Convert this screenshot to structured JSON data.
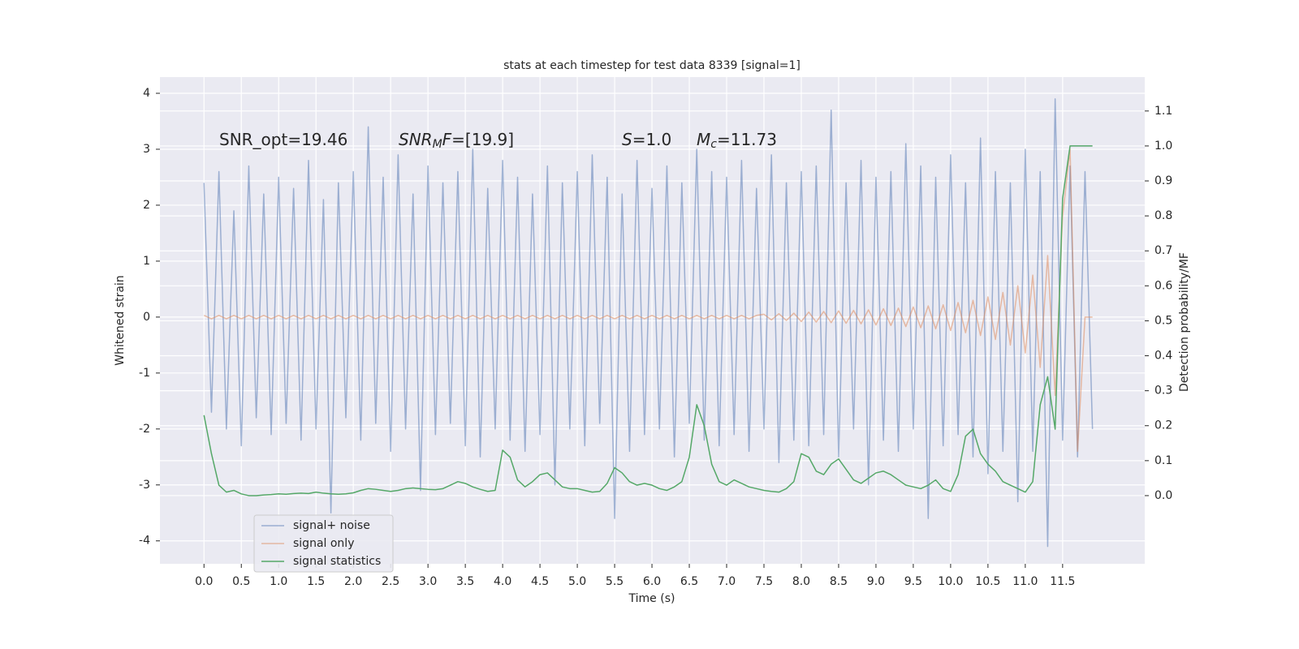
{
  "chart_data": {
    "type": "line",
    "title": "stats at each timestep for test data 8339 [signal=1]",
    "x_label": "Time (s)",
    "y_label": "Whitened strain",
    "y2_label": "Detection probability/MF",
    "annotations": [
      [
        "SNR_opt=19.46"
      ],
      [
        "SNR",
        "M",
        "F",
        "=[19.9]"
      ],
      [
        "S",
        "=1.0"
      ],
      [
        "M",
        "c",
        "=11.73"
      ]
    ],
    "x": [
      0.0,
      0.1,
      0.2,
      0.3,
      0.4,
      0.5,
      0.6,
      0.7,
      0.8,
      0.9,
      1.0,
      1.1,
      1.2,
      1.3,
      1.4,
      1.5,
      1.6,
      1.7,
      1.8,
      1.9,
      2.0,
      2.1,
      2.2,
      2.3,
      2.4,
      2.5,
      2.6,
      2.7,
      2.8,
      2.9,
      3.0,
      3.1,
      3.2,
      3.3,
      3.4,
      3.5,
      3.6,
      3.7,
      3.8,
      3.9,
      4.0,
      4.1,
      4.2,
      4.3,
      4.4,
      4.5,
      4.6,
      4.7,
      4.8,
      4.9,
      5.0,
      5.1,
      5.2,
      5.3,
      5.4,
      5.5,
      5.6,
      5.7,
      5.8,
      5.9,
      6.0,
      6.1,
      6.2,
      6.3,
      6.4,
      6.5,
      6.6,
      6.7,
      6.8,
      6.9,
      7.0,
      7.1,
      7.2,
      7.3,
      7.4,
      7.5,
      7.6,
      7.7,
      7.8,
      7.9,
      8.0,
      8.1,
      8.2,
      8.3,
      8.4,
      8.5,
      8.6,
      8.7,
      8.8,
      8.9,
      9.0,
      9.1,
      9.2,
      9.3,
      9.4,
      9.5,
      9.6,
      9.7,
      9.8,
      9.9,
      10.0,
      10.1,
      10.2,
      10.3,
      10.4,
      10.5,
      10.6,
      10.7,
      10.8,
      10.9,
      11.0,
      11.1,
      11.2,
      11.3,
      11.4,
      11.5,
      11.6,
      11.7,
      11.8,
      11.9
    ],
    "series": [
      {
        "name": "signal+ noise",
        "color": "#4c72b0",
        "opacity": 0.5,
        "axis": "y",
        "values": [
          2.4,
          -1.7,
          2.6,
          -2.0,
          1.9,
          -2.3,
          2.7,
          -1.8,
          2.2,
          -2.1,
          2.5,
          -1.9,
          2.3,
          -2.2,
          2.8,
          -2.0,
          2.1,
          -3.5,
          2.4,
          -1.8,
          2.6,
          -2.2,
          3.4,
          -1.9,
          2.5,
          -2.4,
          2.9,
          -2.0,
          2.2,
          -3.1,
          2.7,
          -2.1,
          2.4,
          -1.9,
          2.6,
          -2.3,
          3.0,
          -2.5,
          2.3,
          -2.0,
          2.8,
          -2.2,
          2.5,
          -2.4,
          2.2,
          -2.1,
          2.7,
          -3.0,
          2.4,
          -2.0,
          2.6,
          -2.3,
          2.9,
          -1.9,
          2.5,
          -3.6,
          2.2,
          -2.4,
          2.8,
          -2.1,
          2.3,
          -2.0,
          2.7,
          -2.5,
          2.4,
          -1.9,
          3.0,
          -2.2,
          2.6,
          -2.3,
          2.5,
          -2.1,
          2.8,
          -2.4,
          2.3,
          -2.0,
          2.9,
          -2.6,
          2.4,
          -2.2,
          2.6,
          -2.3,
          2.7,
          -2.1,
          3.7,
          -2.5,
          2.4,
          -2.0,
          2.8,
          -3.0,
          2.5,
          -2.2,
          2.6,
          -2.4,
          3.1,
          -2.0,
          2.7,
          -3.6,
          2.5,
          -2.3,
          2.9,
          -2.1,
          2.4,
          -2.5,
          3.2,
          -2.8,
          2.6,
          -2.4,
          2.4,
          -3.3,
          3.0,
          -2.4,
          2.6,
          -4.1,
          3.9,
          -2.2,
          2.7,
          -2.5,
          2.6,
          -2.0
        ]
      },
      {
        "name": "signal only",
        "color": "#dd8452",
        "opacity": 0.5,
        "axis": "y",
        "values": [
          0.03,
          -0.03,
          0.03,
          -0.03,
          0.03,
          -0.03,
          0.03,
          -0.03,
          0.03,
          -0.03,
          0.03,
          -0.03,
          0.03,
          -0.03,
          0.03,
          -0.03,
          0.03,
          -0.03,
          0.03,
          -0.03,
          0.03,
          -0.03,
          0.03,
          -0.03,
          0.03,
          -0.03,
          0.03,
          -0.03,
          0.03,
          -0.03,
          0.03,
          -0.03,
          0.03,
          -0.03,
          0.03,
          -0.03,
          0.03,
          -0.03,
          0.03,
          -0.03,
          0.03,
          -0.03,
          0.03,
          -0.03,
          0.03,
          -0.03,
          0.03,
          -0.03,
          0.03,
          -0.03,
          0.03,
          -0.03,
          0.03,
          -0.03,
          0.03,
          -0.03,
          0.03,
          -0.03,
          0.03,
          -0.03,
          0.03,
          -0.03,
          0.03,
          -0.03,
          0.03,
          -0.03,
          0.03,
          -0.03,
          0.03,
          -0.03,
          0.03,
          -0.03,
          0.03,
          -0.03,
          0.03,
          0.05,
          -0.05,
          0.06,
          -0.06,
          0.07,
          -0.08,
          0.09,
          -0.09,
          0.1,
          -0.1,
          0.11,
          -0.11,
          0.12,
          -0.12,
          0.13,
          -0.14,
          0.15,
          -0.15,
          0.16,
          -0.17,
          0.18,
          -0.19,
          0.2,
          -0.21,
          0.22,
          -0.24,
          0.26,
          -0.28,
          0.3,
          -0.33,
          0.36,
          -0.4,
          0.44,
          -0.5,
          0.56,
          -0.64,
          0.75,
          -0.9,
          1.1,
          -1.4,
          1.8,
          3.0,
          -2.4,
          0.0,
          0.0
        ]
      },
      {
        "name": "signal statistics",
        "color": "#55a868",
        "opacity": 1,
        "axis": "y2",
        "values": [
          0.23,
          0.12,
          0.03,
          0.01,
          0.015,
          0.005,
          0.0,
          0.0,
          0.002,
          0.003,
          0.005,
          0.004,
          0.006,
          0.007,
          0.006,
          0.01,
          0.007,
          0.005,
          0.004,
          0.005,
          0.008,
          0.015,
          0.02,
          0.018,
          0.015,
          0.012,
          0.015,
          0.02,
          0.022,
          0.02,
          0.018,
          0.017,
          0.02,
          0.03,
          0.04,
          0.035,
          0.025,
          0.018,
          0.012,
          0.015,
          0.13,
          0.11,
          0.045,
          0.025,
          0.04,
          0.06,
          0.065,
          0.045,
          0.025,
          0.02,
          0.02,
          0.015,
          0.01,
          0.012,
          0.035,
          0.08,
          0.065,
          0.04,
          0.03,
          0.035,
          0.03,
          0.02,
          0.015,
          0.025,
          0.04,
          0.11,
          0.26,
          0.2,
          0.09,
          0.04,
          0.03,
          0.045,
          0.035,
          0.025,
          0.02,
          0.015,
          0.012,
          0.01,
          0.02,
          0.04,
          0.12,
          0.11,
          0.07,
          0.06,
          0.09,
          0.105,
          0.075,
          0.045,
          0.035,
          0.05,
          0.065,
          0.07,
          0.06,
          0.045,
          0.03,
          0.025,
          0.02,
          0.03,
          0.045,
          0.02,
          0.012,
          0.06,
          0.17,
          0.19,
          0.12,
          0.09,
          0.07,
          0.04,
          0.03,
          0.02,
          0.01,
          0.04,
          0.26,
          0.34,
          0.19,
          0.85,
          1.0,
          1.0,
          1.0,
          1.0
        ]
      }
    ],
    "xlim": [
      -0.59,
      12.6
    ],
    "ylim": [
      -4.41,
      4.29
    ],
    "y2lim": [
      -0.195,
      1.197
    ],
    "xticks": [
      {
        "value": 0,
        "label": "0.0"
      },
      0.5,
      {
        "value": 1,
        "label": "1.0"
      },
      1.5,
      {
        "value": 2,
        "label": "2.0"
      },
      2.5,
      {
        "value": 3,
        "label": "3.0"
      },
      3.5,
      {
        "value": 4,
        "label": "4.0"
      },
      4.5,
      {
        "value": 5,
        "label": "5.0"
      },
      5.5,
      {
        "value": 6,
        "label": "6.0"
      },
      6.5,
      {
        "value": 7,
        "label": "7.0"
      },
      7.5,
      {
        "value": 8,
        "label": "8.0"
      },
      8.5,
      {
        "value": 9,
        "label": "9.0"
      },
      9.5,
      {
        "value": 10,
        "label": "10.0"
      },
      10.5,
      {
        "value": 11,
        "label": "11.0"
      },
      11.5
    ],
    "yticks": [
      -4,
      -3,
      -2,
      -1,
      0,
      1,
      2,
      3,
      4
    ],
    "y2ticks": [
      {
        "value": 0,
        "label": "0.0"
      },
      0.1,
      0.2,
      0.3,
      0.4,
      0.5,
      0.6,
      0.7,
      0.8,
      0.9,
      {
        "value": 1,
        "label": "1.0"
      },
      1.1
    ],
    "grid": true,
    "legend": "lower left",
    "background": "#eaeaf2"
  }
}
